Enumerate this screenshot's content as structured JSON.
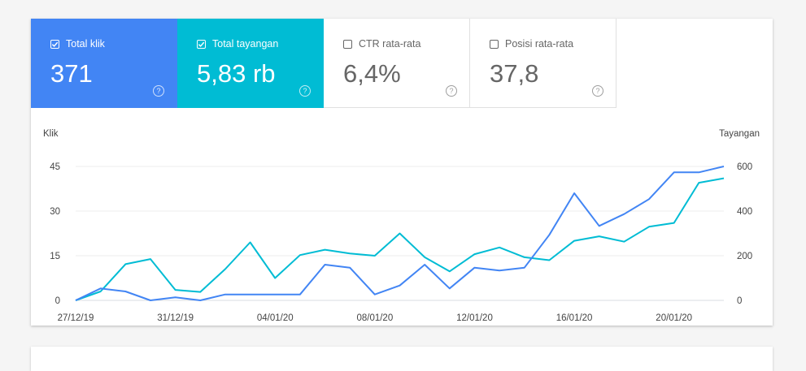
{
  "metrics": [
    {
      "label": "Total klik",
      "value": "371",
      "checked": true,
      "color": "#4285f4"
    },
    {
      "label": "Total tayangan",
      "value": "5,83 rb",
      "checked": true,
      "color": "#00bcd4"
    },
    {
      "label": "CTR rata-rata",
      "value": "6,4%",
      "checked": false,
      "color": "#ffffff"
    },
    {
      "label": "Posisi rata-rata",
      "value": "37,8",
      "checked": false,
      "color": "#ffffff"
    }
  ],
  "help_glyph": "?",
  "chart_data": {
    "type": "line",
    "x": [
      "27/12/19",
      "28/12/19",
      "29/12/19",
      "30/12/19",
      "31/12/19",
      "01/01/20",
      "02/01/20",
      "03/01/20",
      "04/01/20",
      "05/01/20",
      "06/01/20",
      "07/01/20",
      "08/01/20",
      "09/01/20",
      "10/01/20",
      "11/01/20",
      "12/01/20",
      "13/01/20",
      "14/01/20",
      "15/01/20",
      "16/01/20",
      "17/01/20",
      "18/01/20",
      "19/01/20",
      "20/01/20",
      "21/01/20",
      "22/01/20"
    ],
    "x_tick_labels": [
      "27/12/19",
      "31/12/19",
      "04/01/20",
      "08/01/20",
      "12/01/20",
      "16/01/20",
      "20/01/20"
    ],
    "y_left": {
      "label": "Klik",
      "range": [
        0,
        45
      ],
      "ticks": [
        0,
        15,
        30,
        45
      ]
    },
    "y_right": {
      "label": "Tayangan",
      "range": [
        0,
        600
      ],
      "ticks": [
        0,
        200,
        400,
        600
      ]
    },
    "grid": true,
    "series": [
      {
        "axis": "left",
        "color": "#4285f4",
        "values": [
          0,
          4,
          3,
          0,
          1,
          0,
          2,
          2,
          2,
          2,
          12,
          11,
          2,
          5,
          12,
          4,
          11,
          10,
          11,
          22,
          36,
          25,
          29,
          34,
          43,
          43,
          45
        ]
      },
      {
        "axis": "right",
        "color": "#00bcd4",
        "values": [
          0,
          40,
          162,
          185,
          47,
          38,
          140,
          260,
          100,
          203,
          227,
          210,
          200,
          300,
          193,
          130,
          207,
          237,
          193,
          180,
          267,
          287,
          263,
          330,
          347,
          527,
          547
        ]
      }
    ]
  }
}
